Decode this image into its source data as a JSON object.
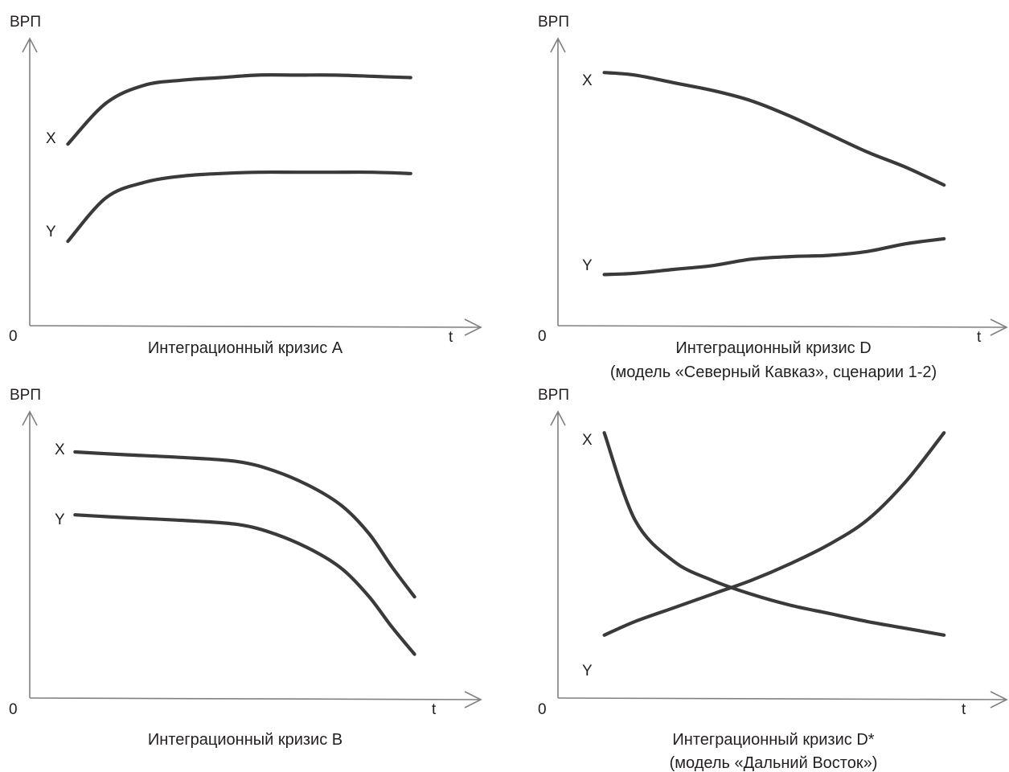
{
  "chart_data": [
    {
      "id": "A",
      "type": "line",
      "ylabel": "ВРП",
      "xlabel": "t",
      "origin_label": "0",
      "caption": [
        "Интеграционный кризис A"
      ],
      "xlim": [
        0,
        10
      ],
      "ylim": [
        0,
        10
      ],
      "series": [
        {
          "name": "X",
          "x": [
            1,
            2,
            3,
            4,
            5,
            6,
            7,
            8,
            9,
            10
          ],
          "y": [
            7.1,
            8.7,
            9.4,
            9.6,
            9.7,
            9.8,
            9.8,
            9.8,
            9.75,
            9.7
          ]
        },
        {
          "name": "Y",
          "x": [
            1,
            2,
            3,
            4,
            5,
            6,
            7,
            8,
            9,
            10
          ],
          "y": [
            3.3,
            5.0,
            5.6,
            5.85,
            5.95,
            6.0,
            6.0,
            6.0,
            6.0,
            5.95
          ]
        }
      ]
    },
    {
      "id": "D",
      "type": "line",
      "ylabel": "ВРП",
      "xlabel": "t",
      "origin_label": "0",
      "caption": [
        "Интеграционный кризис D",
        "(модель «Северный Кавказ», сценарии 1-2)"
      ],
      "xlim": [
        0,
        10
      ],
      "ylim": [
        0,
        10
      ],
      "series": [
        {
          "name": "X",
          "x": [
            1.2,
            2,
            3,
            4,
            5,
            6,
            7,
            8,
            9,
            10
          ],
          "y": [
            9.9,
            9.8,
            9.5,
            9.2,
            8.8,
            8.2,
            7.5,
            6.8,
            6.2,
            5.5
          ]
        },
        {
          "name": "Y",
          "x": [
            1.2,
            2,
            3,
            4,
            5,
            6,
            7,
            8,
            9,
            10
          ],
          "y": [
            2.0,
            2.05,
            2.2,
            2.35,
            2.6,
            2.7,
            2.75,
            2.9,
            3.2,
            3.4
          ]
        }
      ]
    },
    {
      "id": "B",
      "type": "line",
      "ylabel": "ВРП",
      "xlabel": "t",
      "origin_label": "0",
      "caption": [
        "Интеграционный кризис B"
      ],
      "xlim": [
        0,
        10
      ],
      "ylim": [
        0,
        10
      ],
      "series": [
        {
          "name": "X",
          "x": [
            1.2,
            2.5,
            4,
            5.5,
            6.5,
            7.5,
            8.3,
            9,
            9.6,
            10.2
          ],
          "y": [
            9.0,
            8.9,
            8.8,
            8.65,
            8.3,
            7.7,
            7.0,
            6.0,
            4.8,
            3.7
          ]
        },
        {
          "name": "Y",
          "x": [
            1.2,
            2.5,
            4,
            5.5,
            6.5,
            7.5,
            8.3,
            9,
            9.6,
            10.2
          ],
          "y": [
            6.7,
            6.6,
            6.5,
            6.35,
            6.0,
            5.4,
            4.7,
            3.7,
            2.6,
            1.6
          ]
        }
      ]
    },
    {
      "id": "D*",
      "type": "line",
      "ylabel": "ВРП",
      "xlabel": "t",
      "origin_label": "0",
      "caption": [
        "Интеграционный кризис D*",
        "(модель «Дальний Восток»)"
      ],
      "xlim": [
        0,
        10
      ],
      "ylim": [
        0,
        10
      ],
      "series": [
        {
          "name": "X",
          "x": [
            1.2,
            2,
            3,
            4,
            5,
            6,
            7,
            8,
            9,
            10
          ],
          "y": [
            9.7,
            6.5,
            5.0,
            4.3,
            3.8,
            3.4,
            3.1,
            2.8,
            2.55,
            2.3
          ]
        },
        {
          "name": "Y",
          "x": [
            1.2,
            2,
            3,
            4,
            5,
            6,
            7,
            8,
            9,
            10
          ],
          "y": [
            2.3,
            2.8,
            3.3,
            3.8,
            4.3,
            4.9,
            5.6,
            6.5,
            7.9,
            9.7
          ]
        }
      ]
    }
  ]
}
